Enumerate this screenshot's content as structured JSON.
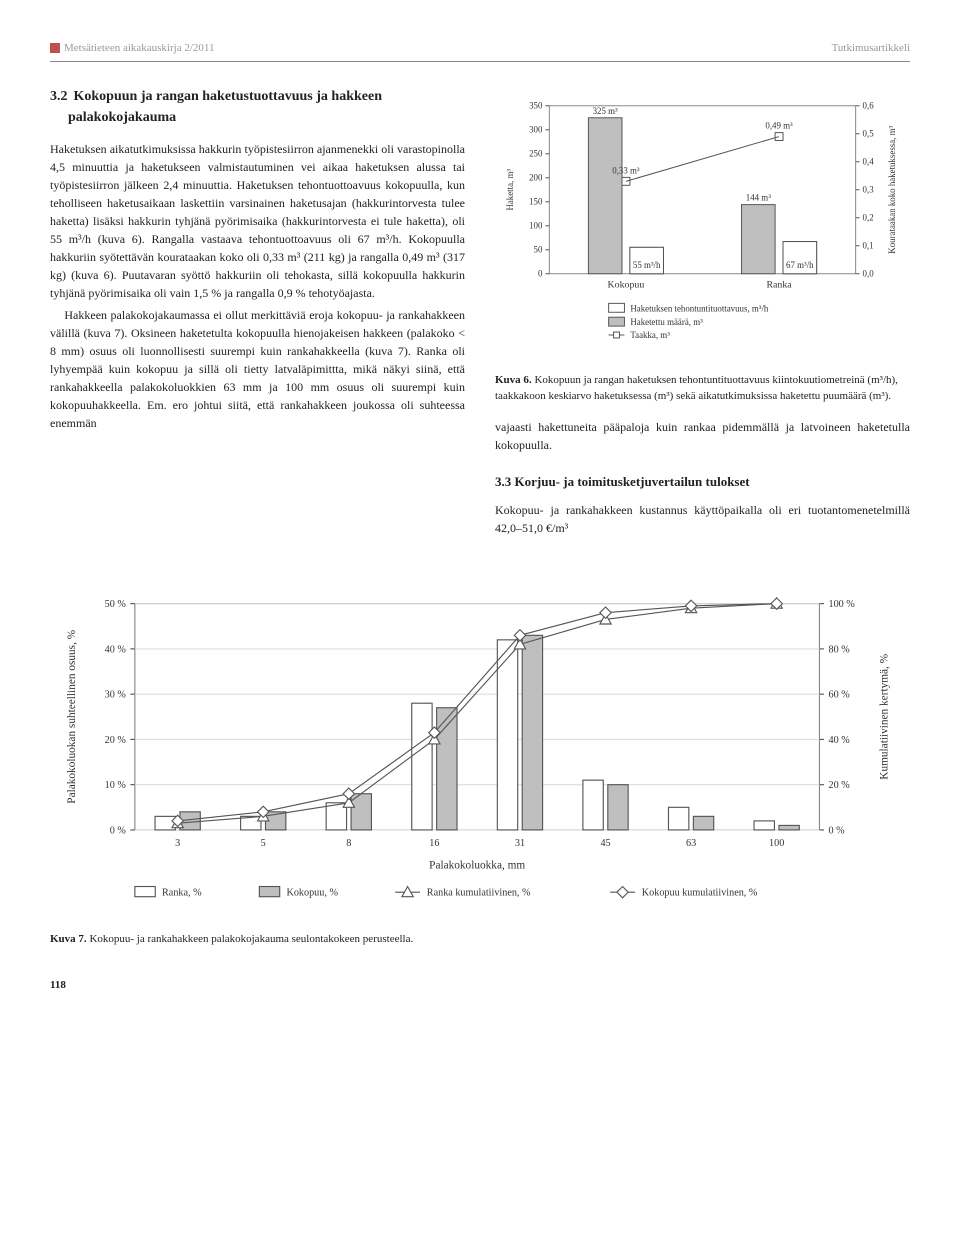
{
  "header": {
    "left": "Metsätieteen aikakauskirja 2/2011",
    "right": "Tutkimusartikkeli"
  },
  "section32": {
    "number": "3.2",
    "title": "Kokopuun ja rangan haketustuottavuus ja hakkeen palakokojakauma",
    "p1": "Haketuksen aikatutkimuksissa hakkurin työpistesiirron ajanmenekki oli varastopinolla 4,5 minuuttia ja haketukseen valmistautuminen vei aikaa haketuksen alussa tai työpistesiirron jälkeen 2,4 minuuttia. Haketuksen tehontuottoavuus kokopuulla, kun teholliseen haketusaikaan laskettiin varsinainen haketusajan (hakkurintorvesta tulee haketta) lisäksi hakkurin tyhjänä pyörimisaika (hakkurintorvesta ei tule haketta), oli 55 m³/h (kuva 6). Rangalla vastaava tehontuottoavuus oli 67 m³/h. Kokopuulla hakkuriin syötettävän kourataakan koko oli 0,33 m³ (211 kg) ja rangalla 0,49 m³ (317 kg) (kuva 6). Puutavaran syöttö hakkuriin oli tehokasta, sillä kokopuulla hakkurin tyhjänä pyörimisaika oli vain 1,5 % ja rangalla 0,9 % tehotyöajasta.",
    "p2": "Hakkeen palakokojakaumassa ei ollut merkittäviä eroja kokopuu- ja rankahakkeen välillä (kuva 7). Oksineen haketetulta kokopuulla hienojakeisen hakkeen (palakoko < 8 mm) osuus oli luonnollisesti suurempi kuin rankahakkeella (kuva 7). Ranka oli lyhyempää kuin kokopuu ja sillä oli tietty latvaläpimittta, mikä näkyi siinä, että rankahakkeella palakokoluokkien 63 mm ja 100 mm osuus oli suurempi kuin kokopuuhakkeella. Em. ero johtui siitä, että rankahakkeen joukossa oli suhteessa enemmän"
  },
  "chart6": {
    "type": "bar_combo",
    "categories": [
      "Kokopuu",
      "Ranka"
    ],
    "haketta_values": [
      325,
      144
    ],
    "haketta_labels": [
      "325 m³",
      "144 m³"
    ],
    "tuott_values": [
      55,
      67
    ],
    "tuott_labels": [
      "55 m³/h",
      "67 m³/h"
    ],
    "taakka_values": [
      0.33,
      0.49
    ],
    "taakka_labels": [
      "0,33 m³",
      "0,49 m³"
    ],
    "y1label": "Haketta, m³",
    "y2label": "Kourataakan koko haketuksessa, m³",
    "y1lim": [
      0,
      350
    ],
    "y1tick_step": 50,
    "y2lim": [
      0.0,
      0.6
    ],
    "y2tick_step": 0.1,
    "bar_fill": "#d9d9d9",
    "bar_stroke": "#555",
    "haketta_fill": "#bfbfbf",
    "marker_fill": "#ffffff",
    "marker_stroke": "#555",
    "bg": "#ffffff",
    "font_axis": 9,
    "font_label": 9,
    "legend": {
      "items": [
        "Haketuksen tehontuntituottavuus, m³/h",
        "Haketettu määrä, m³",
        "Taakka, m³"
      ]
    },
    "caption_bold": "Kuva 6.",
    "caption": "Kokopuun ja rangan haketuksen tehontuntituottavuus kiintokuutiometreinä (m³/h), taakkakoon keskiarvo haketuksessa (m³) sekä aikatutkimuksissa haketettu puumäärä (m³)."
  },
  "rightcol": {
    "p1": "vajaasti hakettuneita pääpaloja kuin rankaa pidemmällä ja latvoineen haketetulla kokopuulla."
  },
  "section33": {
    "number": "3.3",
    "title": "Korjuu- ja toimitusketjuvertailun tulokset",
    "p1": "Kokopuu- ja rankahakkeen kustannus käyttöpaikalla oli eri tuotantomenetelmillä 42,0–51,0 €/m³"
  },
  "chart7": {
    "type": "bar_line_combo",
    "xlabel": "Palakokoluokka, mm",
    "y1label": "Palakokoluokan suhteellinen osuus, %",
    "y2label": "Kumulatiivinen kertymä, %",
    "categories": [
      "3",
      "5",
      "8",
      "16",
      "31",
      "45",
      "63",
      "100"
    ],
    "ranka_pct": [
      3,
      3,
      6,
      28,
      42,
      11,
      5,
      2
    ],
    "kokopuu_pct": [
      4,
      4,
      8,
      27,
      43,
      10,
      3,
      1
    ],
    "ranka_cum": [
      3,
      6,
      12,
      40,
      82,
      93,
      98,
      100
    ],
    "kokopuu_cum": [
      4,
      8,
      16,
      43,
      86,
      96,
      99,
      100
    ],
    "y1lim": [
      0,
      50
    ],
    "y1tick_step": 10,
    "y2lim": [
      0,
      100
    ],
    "y2tick_step": 20,
    "ranka_fill": "#ffffff",
    "kokopuu_fill": "#bfbfbf",
    "bar_stroke": "#555",
    "ranka_line_marker": "triangle",
    "kokopuu_line_marker": "diamond",
    "line_stroke": "#555",
    "bg": "#ffffff",
    "font_axis": 9,
    "legend": {
      "items": [
        "Ranka, %",
        "Kokopuu, %",
        "Ranka kumulatiivinen, %",
        "Kokopuu kumulatiivinen, %"
      ]
    },
    "caption_bold": "Kuva 7.",
    "caption": "Kokopuu- ja rankahakkeen palakokojakauma seulontakokeen perusteella."
  },
  "page": "118"
}
